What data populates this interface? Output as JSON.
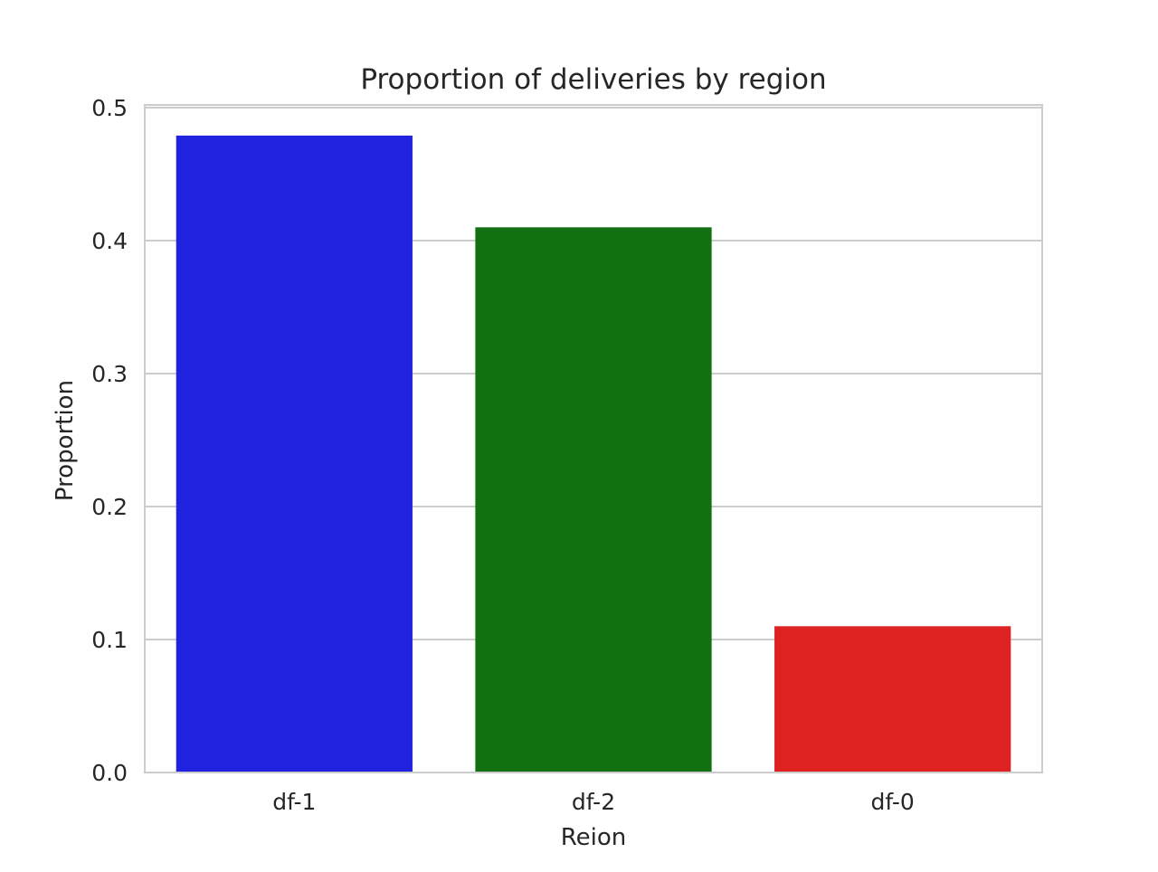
{
  "chart_data": {
    "type": "bar",
    "title": "Proportion of deliveries by region",
    "xlabel": "Reion",
    "ylabel": "Proportion",
    "categories": [
      "df-1",
      "df-2",
      "df-0"
    ],
    "values": [
      0.479,
      0.41,
      0.11
    ],
    "colors": [
      "#2121e0",
      "#117011",
      "#de2121"
    ],
    "ylim": [
      0,
      0.5
    ],
    "yticks": [
      0.0,
      0.1,
      0.2,
      0.3,
      0.4,
      0.5
    ],
    "ytick_labels": [
      "0.0",
      "0.1",
      "0.2",
      "0.3",
      "0.4",
      "0.5"
    ],
    "grid": "horizontal",
    "gridline_color": "#cccccc",
    "legend": "none"
  }
}
